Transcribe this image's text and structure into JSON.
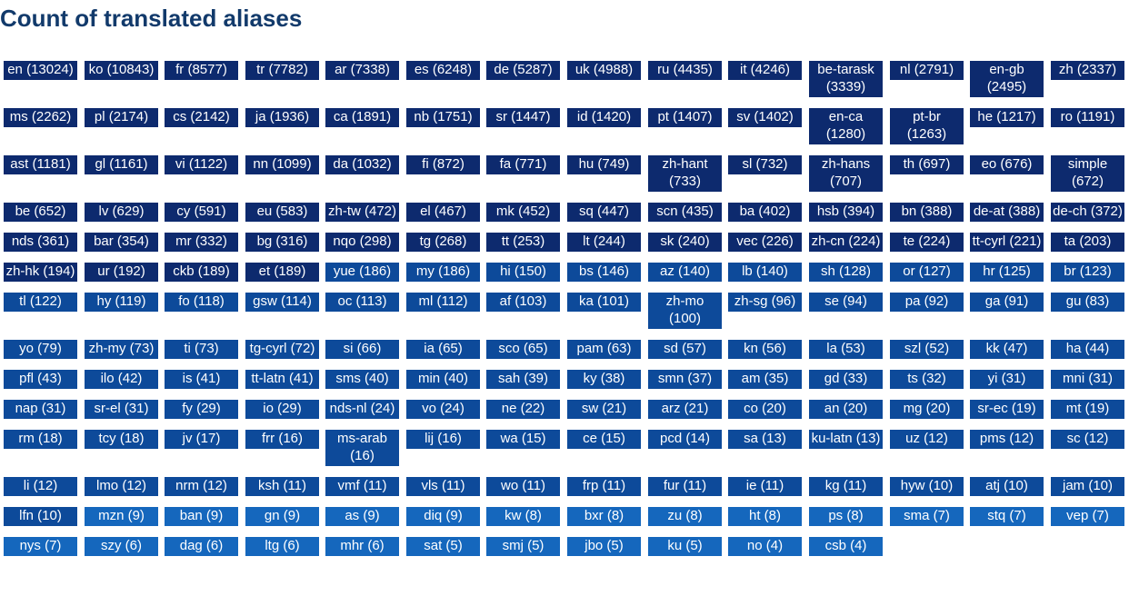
{
  "title": "Count of translated aliases",
  "colors": {
    "title": "#123a6b",
    "text": "#ffffff",
    "band1": "#0d2a6e",
    "band2": "#0d4a9a",
    "band3": "#1567bd"
  },
  "chart_data": {
    "type": "table",
    "title": "Count of translated aliases",
    "items": [
      {
        "code": "en",
        "count": 13024
      },
      {
        "code": "ko",
        "count": 10843
      },
      {
        "code": "fr",
        "count": 8577
      },
      {
        "code": "tr",
        "count": 7782
      },
      {
        "code": "ar",
        "count": 7338
      },
      {
        "code": "es",
        "count": 6248
      },
      {
        "code": "de",
        "count": 5287
      },
      {
        "code": "uk",
        "count": 4988
      },
      {
        "code": "ru",
        "count": 4435
      },
      {
        "code": "it",
        "count": 4246
      },
      {
        "code": "be-tarask",
        "count": 3339
      },
      {
        "code": "nl",
        "count": 2791
      },
      {
        "code": "en-gb",
        "count": 2495
      },
      {
        "code": "zh",
        "count": 2337
      },
      {
        "code": "ms",
        "count": 2262
      },
      {
        "code": "pl",
        "count": 2174
      },
      {
        "code": "cs",
        "count": 2142
      },
      {
        "code": "ja",
        "count": 1936
      },
      {
        "code": "ca",
        "count": 1891
      },
      {
        "code": "nb",
        "count": 1751
      },
      {
        "code": "sr",
        "count": 1447
      },
      {
        "code": "id",
        "count": 1420
      },
      {
        "code": "pt",
        "count": 1407
      },
      {
        "code": "sv",
        "count": 1402
      },
      {
        "code": "en-ca",
        "count": 1280
      },
      {
        "code": "pt-br",
        "count": 1263
      },
      {
        "code": "he",
        "count": 1217
      },
      {
        "code": "ro",
        "count": 1191
      },
      {
        "code": "ast",
        "count": 1181
      },
      {
        "code": "gl",
        "count": 1161
      },
      {
        "code": "vi",
        "count": 1122
      },
      {
        "code": "nn",
        "count": 1099
      },
      {
        "code": "da",
        "count": 1032
      },
      {
        "code": "fi",
        "count": 872
      },
      {
        "code": "fa",
        "count": 771
      },
      {
        "code": "hu",
        "count": 749
      },
      {
        "code": "zh-hant",
        "count": 733
      },
      {
        "code": "sl",
        "count": 732
      },
      {
        "code": "zh-hans",
        "count": 707
      },
      {
        "code": "th",
        "count": 697
      },
      {
        "code": "eo",
        "count": 676
      },
      {
        "code": "simple",
        "count": 672
      },
      {
        "code": "be",
        "count": 652
      },
      {
        "code": "lv",
        "count": 629
      },
      {
        "code": "cy",
        "count": 591
      },
      {
        "code": "eu",
        "count": 583
      },
      {
        "code": "zh-tw",
        "count": 472
      },
      {
        "code": "el",
        "count": 467
      },
      {
        "code": "mk",
        "count": 452
      },
      {
        "code": "sq",
        "count": 447
      },
      {
        "code": "scn",
        "count": 435
      },
      {
        "code": "ba",
        "count": 402
      },
      {
        "code": "hsb",
        "count": 394
      },
      {
        "code": "bn",
        "count": 388
      },
      {
        "code": "de-at",
        "count": 388
      },
      {
        "code": "de-ch",
        "count": 372
      },
      {
        "code": "nds",
        "count": 361
      },
      {
        "code": "bar",
        "count": 354
      },
      {
        "code": "mr",
        "count": 332
      },
      {
        "code": "bg",
        "count": 316
      },
      {
        "code": "nqo",
        "count": 298
      },
      {
        "code": "tg",
        "count": 268
      },
      {
        "code": "tt",
        "count": 253
      },
      {
        "code": "lt",
        "count": 244
      },
      {
        "code": "sk",
        "count": 240
      },
      {
        "code": "vec",
        "count": 226
      },
      {
        "code": "zh-cn",
        "count": 224
      },
      {
        "code": "te",
        "count": 224
      },
      {
        "code": "tt-cyrl",
        "count": 221
      },
      {
        "code": "ta",
        "count": 203
      },
      {
        "code": "zh-hk",
        "count": 194
      },
      {
        "code": "ur",
        "count": 192
      },
      {
        "code": "ckb",
        "count": 189
      },
      {
        "code": "et",
        "count": 189
      },
      {
        "code": "yue",
        "count": 186
      },
      {
        "code": "my",
        "count": 186
      },
      {
        "code": "hi",
        "count": 150
      },
      {
        "code": "bs",
        "count": 146
      },
      {
        "code": "az",
        "count": 140
      },
      {
        "code": "lb",
        "count": 140
      },
      {
        "code": "sh",
        "count": 128
      },
      {
        "code": "or",
        "count": 127
      },
      {
        "code": "hr",
        "count": 125
      },
      {
        "code": "br",
        "count": 123
      },
      {
        "code": "tl",
        "count": 122
      },
      {
        "code": "hy",
        "count": 119
      },
      {
        "code": "fo",
        "count": 118
      },
      {
        "code": "gsw",
        "count": 114
      },
      {
        "code": "oc",
        "count": 113
      },
      {
        "code": "ml",
        "count": 112
      },
      {
        "code": "af",
        "count": 103
      },
      {
        "code": "ka",
        "count": 101
      },
      {
        "code": "zh-mo",
        "count": 100
      },
      {
        "code": "zh-sg",
        "count": 96
      },
      {
        "code": "se",
        "count": 94
      },
      {
        "code": "pa",
        "count": 92
      },
      {
        "code": "ga",
        "count": 91
      },
      {
        "code": "gu",
        "count": 83
      },
      {
        "code": "yo",
        "count": 79
      },
      {
        "code": "zh-my",
        "count": 73
      },
      {
        "code": "ti",
        "count": 73
      },
      {
        "code": "tg-cyrl",
        "count": 72
      },
      {
        "code": "si",
        "count": 66
      },
      {
        "code": "ia",
        "count": 65
      },
      {
        "code": "sco",
        "count": 65
      },
      {
        "code": "pam",
        "count": 63
      },
      {
        "code": "sd",
        "count": 57
      },
      {
        "code": "kn",
        "count": 56
      },
      {
        "code": "la",
        "count": 53
      },
      {
        "code": "szl",
        "count": 52
      },
      {
        "code": "kk",
        "count": 47
      },
      {
        "code": "ha",
        "count": 44
      },
      {
        "code": "pfl",
        "count": 43
      },
      {
        "code": "ilo",
        "count": 42
      },
      {
        "code": "is",
        "count": 41
      },
      {
        "code": "tt-latn",
        "count": 41
      },
      {
        "code": "sms",
        "count": 40
      },
      {
        "code": "min",
        "count": 40
      },
      {
        "code": "sah",
        "count": 39
      },
      {
        "code": "ky",
        "count": 38
      },
      {
        "code": "smn",
        "count": 37
      },
      {
        "code": "am",
        "count": 35
      },
      {
        "code": "gd",
        "count": 33
      },
      {
        "code": "ts",
        "count": 32
      },
      {
        "code": "yi",
        "count": 31
      },
      {
        "code": "mni",
        "count": 31
      },
      {
        "code": "nap",
        "count": 31
      },
      {
        "code": "sr-el",
        "count": 31
      },
      {
        "code": "fy",
        "count": 29
      },
      {
        "code": "io",
        "count": 29
      },
      {
        "code": "nds-nl",
        "count": 24
      },
      {
        "code": "vo",
        "count": 24
      },
      {
        "code": "ne",
        "count": 22
      },
      {
        "code": "sw",
        "count": 21
      },
      {
        "code": "arz",
        "count": 21
      },
      {
        "code": "co",
        "count": 20
      },
      {
        "code": "an",
        "count": 20
      },
      {
        "code": "mg",
        "count": 20
      },
      {
        "code": "sr-ec",
        "count": 19
      },
      {
        "code": "mt",
        "count": 19
      },
      {
        "code": "rm",
        "count": 18
      },
      {
        "code": "tcy",
        "count": 18
      },
      {
        "code": "jv",
        "count": 17
      },
      {
        "code": "frr",
        "count": 16
      },
      {
        "code": "ms-arab",
        "count": 16
      },
      {
        "code": "lij",
        "count": 16
      },
      {
        "code": "wa",
        "count": 15
      },
      {
        "code": "ce",
        "count": 15
      },
      {
        "code": "pcd",
        "count": 14
      },
      {
        "code": "sa",
        "count": 13
      },
      {
        "code": "ku-latn",
        "count": 13
      },
      {
        "code": "uz",
        "count": 12
      },
      {
        "code": "pms",
        "count": 12
      },
      {
        "code": "sc",
        "count": 12
      },
      {
        "code": "li",
        "count": 12
      },
      {
        "code": "lmo",
        "count": 12
      },
      {
        "code": "nrm",
        "count": 12
      },
      {
        "code": "ksh",
        "count": 11
      },
      {
        "code": "vmf",
        "count": 11
      },
      {
        "code": "vls",
        "count": 11
      },
      {
        "code": "wo",
        "count": 11
      },
      {
        "code": "frp",
        "count": 11
      },
      {
        "code": "fur",
        "count": 11
      },
      {
        "code": "ie",
        "count": 11
      },
      {
        "code": "kg",
        "count": 11
      },
      {
        "code": "hyw",
        "count": 10
      },
      {
        "code": "atj",
        "count": 10
      },
      {
        "code": "jam",
        "count": 10
      },
      {
        "code": "lfn",
        "count": 10
      },
      {
        "code": "mzn",
        "count": 9
      },
      {
        "code": "ban",
        "count": 9
      },
      {
        "code": "gn",
        "count": 9
      },
      {
        "code": "as",
        "count": 9
      },
      {
        "code": "diq",
        "count": 9
      },
      {
        "code": "kw",
        "count": 8
      },
      {
        "code": "bxr",
        "count": 8
      },
      {
        "code": "zu",
        "count": 8
      },
      {
        "code": "ht",
        "count": 8
      },
      {
        "code": "ps",
        "count": 8
      },
      {
        "code": "sma",
        "count": 7
      },
      {
        "code": "stq",
        "count": 7
      },
      {
        "code": "vep",
        "count": 7
      },
      {
        "code": "nys",
        "count": 7
      },
      {
        "code": "szy",
        "count": 6
      },
      {
        "code": "dag",
        "count": 6
      },
      {
        "code": "ltg",
        "count": 6
      },
      {
        "code": "mhr",
        "count": 6
      },
      {
        "code": "sat",
        "count": 5
      },
      {
        "code": "smj",
        "count": 5
      },
      {
        "code": "jbo",
        "count": 5
      },
      {
        "code": "ku",
        "count": 5
      },
      {
        "code": "no",
        "count": 4
      },
      {
        "code": "csb",
        "count": 4
      }
    ]
  }
}
